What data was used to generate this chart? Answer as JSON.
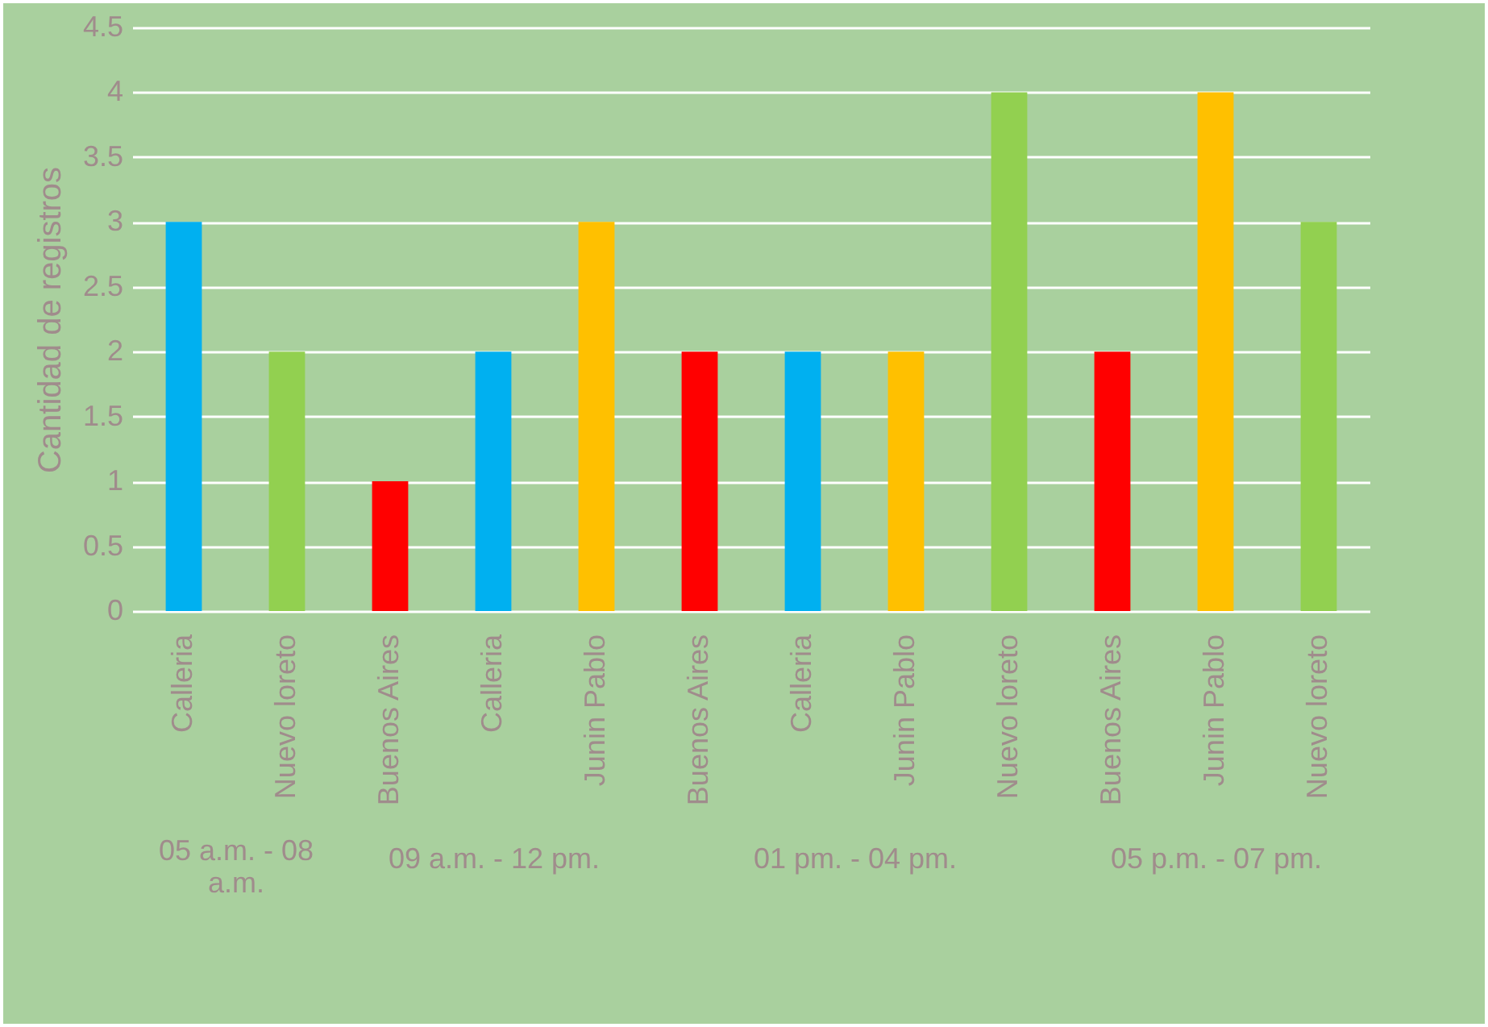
{
  "chart_data": [
    {
      "type": "bar",
      "ylabel": "Cantidad de registros",
      "xlabel": "05 a.m. - 08 a.m.",
      "categories": [
        "Calleria",
        "Nuevo loreto"
      ],
      "values": [
        3,
        2
      ],
      "colors": [
        "#00b0f0",
        "#92d050"
      ],
      "ylim": [
        0,
        4.5
      ],
      "yticks": [
        0,
        0.5,
        1,
        1.5,
        2,
        2.5,
        3,
        3.5,
        4,
        4.5
      ],
      "grid": "y"
    },
    {
      "type": "bar",
      "xlabel": "09 a.m. - 12 pm.",
      "categories": [
        "Buenos Aires",
        "Calleria",
        "Junin Pablo"
      ],
      "values": [
        1,
        2,
        3
      ],
      "colors": [
        "#ff0000",
        "#00b0f0",
        "#ffc000"
      ],
      "ylim": [
        0,
        4.5
      ],
      "yticks": [
        0,
        0.5,
        1,
        1.5,
        2,
        2.5,
        3,
        3.5,
        4,
        4.5
      ],
      "grid": "y",
      "tick_labels": "x"
    },
    {
      "type": "bar",
      "xlabel": "01 pm. - 04 pm.",
      "categories": [
        "Buenos Aires",
        "Calleria",
        "Junin Pablo",
        "Nuevo loreto"
      ],
      "values": [
        2,
        2,
        2,
        4
      ],
      "colors": [
        "#ff0000",
        "#00b0f0",
        "#ffc000",
        "#92d050"
      ],
      "ylim": [
        0,
        4.5
      ],
      "yticks": [
        0,
        0.5,
        1,
        1.5,
        2,
        2.5,
        3,
        3.5,
        4,
        4.5
      ],
      "grid": "y",
      "tick_labels": "x"
    },
    {
      "type": "bar",
      "xlabel": "05 p.m. - 07 pm.",
      "categories": [
        "Buenos Aires",
        "Junin Pablo",
        "Nuevo loreto"
      ],
      "values": [
        2,
        4,
        3
      ],
      "colors": [
        "#ff0000",
        "#ffc000",
        "#92d050"
      ],
      "ylim": [
        0,
        4.5
      ],
      "yticks": [
        0,
        0.5,
        1,
        1.5,
        2,
        2.5,
        3,
        3.5,
        4,
        4.5
      ],
      "grid": "y",
      "tick_labels": "x"
    }
  ]
}
